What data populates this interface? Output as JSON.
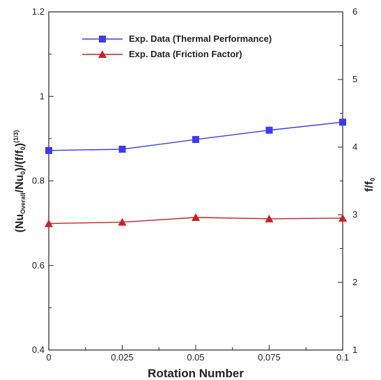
{
  "chart_data": {
    "type": "line",
    "x": [
      0,
      0.025,
      0.05,
      0.075,
      0.1
    ],
    "x_ticks": [
      "0",
      "0.025",
      "0.05",
      "0.075",
      "0.1"
    ],
    "xlabel": "Rotation Number",
    "xlim": [
      0,
      0.1
    ],
    "y_left": {
      "label_parts": [
        "(Nu",
        "Overall",
        "/Nu",
        "0",
        ")/(f/f",
        "0",
        ")",
        "(1/3)"
      ],
      "ylim": [
        0.4,
        1.2
      ],
      "ticks": [
        "0.4",
        "0.6",
        "0.8",
        "1",
        "1.2"
      ],
      "tick_values": [
        0.4,
        0.6,
        0.8,
        1.0,
        1.2
      ]
    },
    "y_right": {
      "label_parts": [
        "f/f",
        "0"
      ],
      "ylim": [
        1,
        6
      ],
      "ticks": [
        "1",
        "2",
        "3",
        "4",
        "5",
        "6"
      ],
      "tick_values": [
        1,
        2,
        3,
        4,
        5,
        6
      ]
    },
    "series": [
      {
        "name": "Exp. Data (Thermal Performance)",
        "axis": "left",
        "marker": "square",
        "color": "#3b3bf0",
        "values": [
          0.872,
          0.875,
          0.898,
          0.92,
          0.939
        ]
      },
      {
        "name": "Exp. Data (Friction Factor)",
        "axis": "right",
        "marker": "triangle",
        "color": "#cc2020",
        "values": [
          2.87,
          2.89,
          2.96,
          2.94,
          2.95
        ]
      }
    ],
    "legend_position": "top-center",
    "grid": false
  }
}
